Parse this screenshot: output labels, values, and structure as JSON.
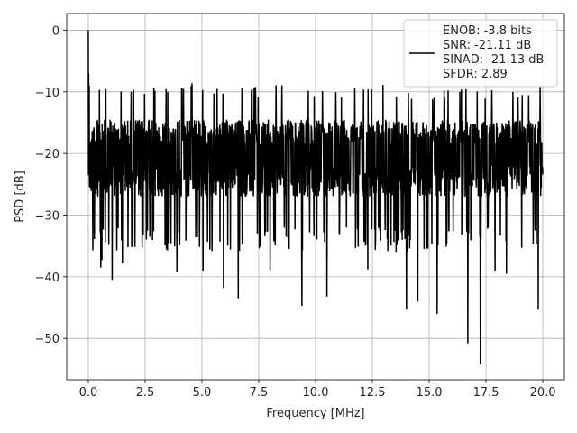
{
  "chart_data": {
    "type": "line",
    "title": "",
    "xlabel": "Frequency [MHz]",
    "ylabel": "PSD [dB]",
    "xlim": [
      -0.95,
      20.95
    ],
    "ylim": [
      -56.7,
      2.7
    ],
    "xticks": [
      0.0,
      2.5,
      5.0,
      7.5,
      10.0,
      12.5,
      15.0,
      17.5,
      20.0
    ],
    "xtick_labels": [
      "0.0",
      "2.5",
      "5.0",
      "7.5",
      "10.0",
      "12.5",
      "15.0",
      "17.5",
      "20.0"
    ],
    "yticks": [
      0,
      -10,
      -20,
      -30,
      -40,
      -50
    ],
    "ytick_labels": [
      "0",
      "−10",
      "−20",
      "−30",
      "−40",
      "−50"
    ],
    "grid": true,
    "legend": {
      "placement": "top-right",
      "lines": [
        "ENOB: -3.8 bits",
        "SNR: -21.11 dB",
        "SINAD: -21.13 dB",
        "SFDR: 2.89"
      ]
    },
    "series": [
      {
        "color": "#000000",
        "x_range": [
          0,
          20
        ],
        "start_values": [
          0.0,
          -23.5,
          -7.0,
          -12.0,
          -18.0,
          -9.0,
          -22.0
        ],
        "floor_level": -20.5,
        "typical_top": -14.5,
        "typical_bottom": -27.0,
        "peaks": [
          -8.5,
          -8.8,
          -9.0,
          -9.5,
          -9.8
        ],
        "deep_dips": [
          {
            "x": 0.2,
            "y": -35.7
          },
          {
            "x": 0.55,
            "y": -38.5
          },
          {
            "x": 0.6,
            "y": -37.3
          },
          {
            "x": 1.05,
            "y": -40.5
          },
          {
            "x": 1.5,
            "y": -37.8
          },
          {
            "x": 3.9,
            "y": -39.2
          },
          {
            "x": 5.05,
            "y": -39.0
          },
          {
            "x": 5.95,
            "y": -41.8
          },
          {
            "x": 6.6,
            "y": -43.5
          },
          {
            "x": 8.0,
            "y": -38.9
          },
          {
            "x": 9.4,
            "y": -44.7
          },
          {
            "x": 10.5,
            "y": -43.2
          },
          {
            "x": 12.3,
            "y": -38.8
          },
          {
            "x": 14.0,
            "y": -45.3
          },
          {
            "x": 14.5,
            "y": -44.0
          },
          {
            "x": 15.35,
            "y": -46.0
          },
          {
            "x": 16.7,
            "y": -50.8
          },
          {
            "x": 17.25,
            "y": -54.2
          },
          {
            "x": 17.9,
            "y": -39.0
          },
          {
            "x": 18.4,
            "y": -39.5
          },
          {
            "x": 19.8,
            "y": -45.3
          }
        ]
      }
    ]
  }
}
